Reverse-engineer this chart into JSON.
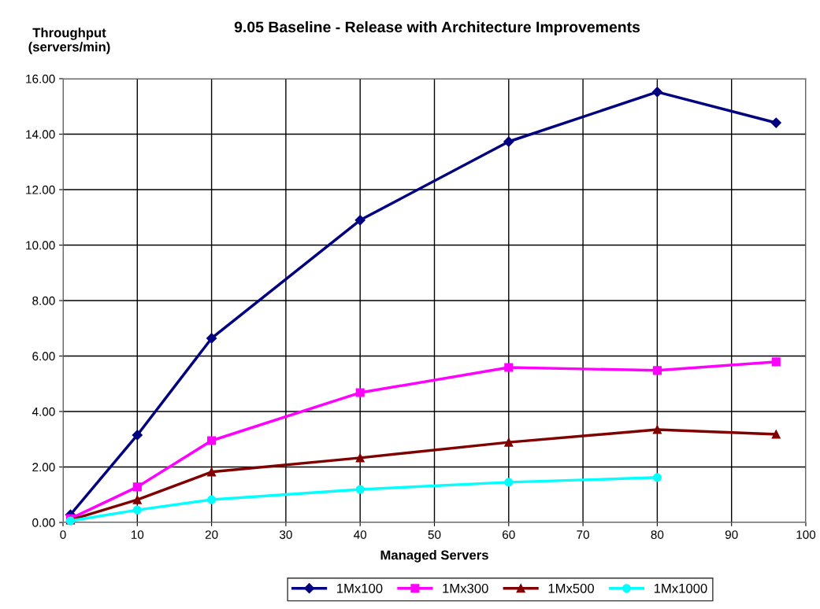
{
  "chart_data": {
    "type": "line",
    "title": "9.05 Baseline - Release with Architecture Improvements",
    "xlabel": "Managed Servers",
    "ylabel": "Throughput\n(servers/min)",
    "xlim": [
      0,
      100
    ],
    "xticks": [
      0,
      10,
      20,
      30,
      40,
      50,
      60,
      70,
      80,
      90,
      100
    ],
    "ylim": [
      0,
      16
    ],
    "yticks": [
      {
        "value": 0,
        "label": "0.00"
      },
      {
        "value": 2,
        "label": "2.00"
      },
      {
        "value": 4,
        "label": "4.00"
      },
      {
        "value": 6,
        "label": "6.00"
      },
      {
        "value": 8,
        "label": "8.00"
      },
      {
        "value": 10,
        "label": "10.00"
      },
      {
        "value": 12,
        "label": "12.00"
      },
      {
        "value": 14,
        "label": "14.00"
      },
      {
        "value": 16,
        "label": "16.00"
      }
    ],
    "grid": true,
    "legend": "bottom",
    "line_style": "solid",
    "series": [
      {
        "name": "1Mx100",
        "color": "#000080",
        "marker": "diamond",
        "x": [
          1,
          10,
          20,
          40,
          60,
          80,
          96
        ],
        "values": [
          0.28,
          3.15,
          6.64,
          10.9,
          13.73,
          15.52,
          14.41
        ]
      },
      {
        "name": "1Mx300",
        "color": "#ff00ff",
        "marker": "square",
        "x": [
          1,
          10,
          20,
          40,
          60,
          80,
          96
        ],
        "values": [
          0.14,
          1.28,
          2.95,
          4.68,
          5.59,
          5.48,
          5.79
        ]
      },
      {
        "name": "1Mx500",
        "color": "#800000",
        "marker": "triangle",
        "x": [
          1,
          10,
          20,
          40,
          60,
          80,
          96
        ],
        "values": [
          0.09,
          0.82,
          1.82,
          2.33,
          2.89,
          3.35,
          3.18
        ]
      },
      {
        "name": "1Mx1000",
        "color": "#00ffff",
        "marker": "circle",
        "x": [
          1,
          10,
          20,
          40,
          60,
          80
        ],
        "values": [
          0.06,
          0.45,
          0.82,
          1.19,
          1.45,
          1.62
        ]
      }
    ]
  }
}
